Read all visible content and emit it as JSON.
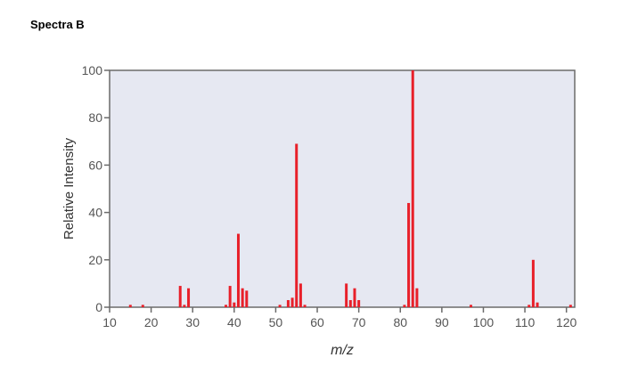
{
  "page": {
    "heading": "Spectra B"
  },
  "chart_data": {
    "type": "bar",
    "xlabel": "m/z",
    "ylabel": "Relative Intensity",
    "xlim": [
      10,
      122
    ],
    "ylim": [
      0,
      100
    ],
    "xticks": [
      "10",
      "20",
      "30",
      "40",
      "50",
      "60",
      "70",
      "80",
      "90",
      "100",
      "110",
      "120"
    ],
    "yticks": [
      "0",
      "20",
      "40",
      "60",
      "80",
      "100"
    ],
    "grid": false,
    "colors": {
      "bar": "#e8202a",
      "plot_bg": "#e6e8f2",
      "frame": "#6b6b6b"
    },
    "points": [
      {
        "x": 15,
        "y": 1
      },
      {
        "x": 18,
        "y": 1
      },
      {
        "x": 27,
        "y": 9
      },
      {
        "x": 28,
        "y": 1
      },
      {
        "x": 29,
        "y": 8
      },
      {
        "x": 38,
        "y": 1
      },
      {
        "x": 39,
        "y": 9
      },
      {
        "x": 40,
        "y": 2
      },
      {
        "x": 41,
        "y": 31
      },
      {
        "x": 42,
        "y": 8
      },
      {
        "x": 43,
        "y": 7
      },
      {
        "x": 51,
        "y": 1
      },
      {
        "x": 53,
        "y": 3
      },
      {
        "x": 54,
        "y": 4
      },
      {
        "x": 55,
        "y": 69
      },
      {
        "x": 56,
        "y": 10
      },
      {
        "x": 57,
        "y": 1
      },
      {
        "x": 67,
        "y": 10
      },
      {
        "x": 68,
        "y": 3
      },
      {
        "x": 69,
        "y": 8
      },
      {
        "x": 70,
        "y": 3
      },
      {
        "x": 81,
        "y": 1
      },
      {
        "x": 82,
        "y": 44
      },
      {
        "x": 83,
        "y": 100
      },
      {
        "x": 84,
        "y": 8
      },
      {
        "x": 97,
        "y": 1
      },
      {
        "x": 111,
        "y": 1
      },
      {
        "x": 112,
        "y": 20
      },
      {
        "x": 113,
        "y": 2
      },
      {
        "x": 121,
        "y": 1
      }
    ]
  }
}
